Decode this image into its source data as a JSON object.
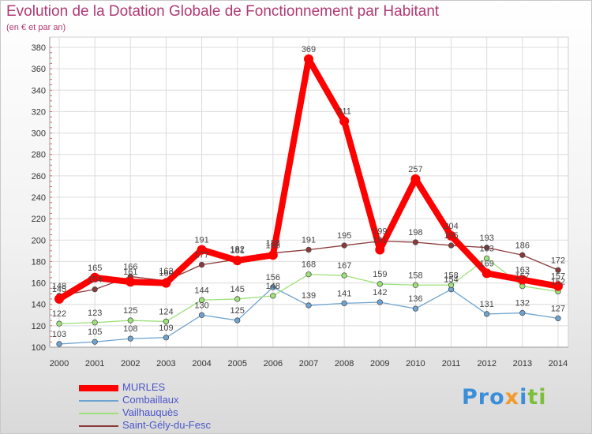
{
  "header": {
    "title": "Evolution de la Dotation Globale de Fonctionnement par Habitant",
    "subtitle": "(en € et par an)"
  },
  "logo": {
    "part1": "Pro",
    "part2": "x",
    "part3": "i",
    "part4": "ti"
  },
  "chart_data": {
    "type": "line",
    "title": "Evolution de la Dotation Globale de Fonctionnement par Habitant",
    "subtitle": "(en € et par an)",
    "xlabel": "",
    "ylabel": "",
    "x": [
      "2000",
      "2001",
      "2002",
      "2003",
      "2004",
      "2005",
      "2006",
      "2007",
      "2008",
      "2009",
      "2010",
      "2011",
      "2012",
      "2013",
      "2014"
    ],
    "ylim": [
      100,
      380
    ],
    "yticks": [
      100,
      120,
      140,
      160,
      180,
      200,
      220,
      240,
      260,
      280,
      300,
      320,
      340,
      360,
      380
    ],
    "grid": true,
    "legend_position": "bottom-left",
    "series": [
      {
        "name": "MURLES",
        "color": "#ff0000",
        "values": [
          145,
          165,
          161,
          160,
          191,
          181,
          186,
          369,
          311,
          191,
          257,
          204,
          169,
          163,
          157
        ]
      },
      {
        "name": "Combaillaux",
        "color": "#6fa3d0",
        "values": [
          103,
          105,
          108,
          109,
          130,
          125,
          156,
          139,
          141,
          142,
          136,
          154,
          131,
          132,
          127
        ]
      },
      {
        "name": "Vailhauquès",
        "color": "#9ee07a",
        "values": [
          122,
          123,
          125,
          124,
          144,
          145,
          148,
          168,
          167,
          159,
          158,
          158,
          183,
          157,
          152
        ]
      },
      {
        "name": "Saint-Gély-du-Fesc",
        "color": "#8a3a3a",
        "values": [
          148,
          154,
          166,
          162,
          177,
          182,
          188,
          191,
          195,
          199,
          198,
          195,
          193,
          186,
          172
        ]
      }
    ]
  }
}
